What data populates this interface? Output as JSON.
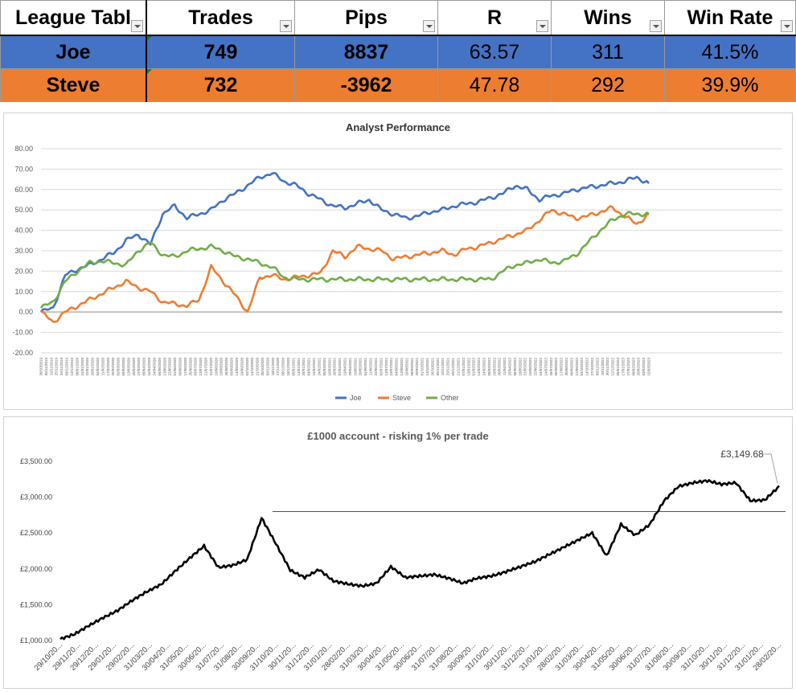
{
  "league_table": {
    "columns": [
      "League Tabl",
      "Trades",
      "Pips",
      "R",
      "Wins",
      "Win Rate"
    ],
    "rows": [
      {
        "name": "Joe",
        "trades": "749",
        "pips": "8837",
        "r": "63.57",
        "wins": "311",
        "win_rate": "41.5%",
        "color": "#4472c4"
      },
      {
        "name": "Steve",
        "trades": "732",
        "pips": "-3962",
        "r": "47.78",
        "wins": "292",
        "win_rate": "39.9%",
        "color": "#ed7d31"
      }
    ]
  },
  "chart_data": [
    {
      "type": "line",
      "title": "Analyst Performance",
      "ylim": [
        -20,
        80
      ],
      "y_ticks": [
        "-20.00",
        "-10.00",
        "0.00",
        "10.00",
        "20.00",
        "30.00",
        "40.00",
        "50.00",
        "60.00",
        "70.00",
        "80.00"
      ],
      "grid": true,
      "legend": "bottom",
      "x_tick_labels": [
        "30/10/2019",
        "05/11/2019",
        "19/11/2019",
        "25/11/2019",
        "29/11/2019",
        "09/12/2019",
        "13/12/2019",
        "08/01/2020",
        "15/01/2020",
        "22/01/2020",
        "28/01/2020",
        "04/02/2020",
        "11/02/2020",
        "17/02/2020",
        "25/02/2020",
        "02/03/2020",
        "09/03/2020",
        "13/03/2020",
        "20/03/2020",
        "27/03/2020",
        "08/04/2020",
        "16/04/2020",
        "24/04/2020",
        "05/05/2020",
        "13/05/2020",
        "22/05/2020",
        "01/06/2020",
        "09/06/2020",
        "17/06/2020",
        "25/06/2020",
        "03/07/2020",
        "13/07/2020",
        "21/07/2020",
        "31/07/2020",
        "10/08/2020",
        "18/08/2020",
        "26/08/2020",
        "03/09/2020",
        "14/09/2020",
        "24/09/2020",
        "02/10/2020",
        "13/10/2020",
        "21/10/2020",
        "30/10/2020",
        "09/11/2020",
        "18/11/2020",
        "27/11/2020",
        "08/12/2020",
        "18/12/2020",
        "05/01/2021",
        "14/01/2021",
        "25/01/2021",
        "04/02/2021",
        "15/02/2021",
        "24/02/2021",
        "05/03/2021",
        "16/03/2021",
        "26/03/2021",
        "07/04/2021",
        "19/04/2021",
        "29/04/2021",
        "10/05/2021",
        "20/05/2021",
        "01/06/2021",
        "11/06/2021",
        "22/06/2021",
        "02/07/2021",
        "13/07/2021",
        "23/07/2021",
        "04/08/2021",
        "13/08/2021",
        "26/08/2021",
        "08/09/2021",
        "20/09/2021",
        "01/10/2021",
        "13/10/2021",
        "26/10/2021",
        "05/11/2021",
        "16/11/2021",
        "29/11/2021",
        "09/12/2021",
        "21/12/2021",
        "07/01/2022",
        "19/01/2022",
        "01/02/2022",
        "14/02/2022",
        "24/02/2022",
        "08/03/2022",
        "18/03/2022",
        "30/03/2022",
        "11/04/2022",
        "25/04/2022",
        "06/05/2022",
        "18/05/2022",
        "31/05/2022",
        "10/06/2022",
        "22/06/2022",
        "04/07/2022",
        "14/07/2022",
        "26/07/2022",
        "05/08/2022",
        "17/08/2022",
        "30/08/2022",
        "09/09/2022",
        "21/09/2022",
        "03/10/2022",
        "14/10/2022",
        "27/10/2022",
        "08/11/2022",
        "18/11/2022",
        "30/11/2022",
        "12/12/2022",
        "05/01/2023",
        "17/01/2023",
        "27/01/2023",
        "08/02/2023",
        "20/02/2023",
        "03/03/2023",
        "15/03/2023"
      ],
      "x": [
        0,
        0.02,
        0.04,
        0.06,
        0.08,
        0.1,
        0.12,
        0.14,
        0.16,
        0.18,
        0.2,
        0.22,
        0.24,
        0.26,
        0.28,
        0.3,
        0.32,
        0.34,
        0.36,
        0.38,
        0.4,
        0.42,
        0.44,
        0.46,
        0.48,
        0.5,
        0.52,
        0.54,
        0.56,
        0.58,
        0.6,
        0.62,
        0.64,
        0.66,
        0.68,
        0.7,
        0.72,
        0.74,
        0.76,
        0.78,
        0.8,
        0.82,
        0.84,
        0.86,
        0.88,
        0.9,
        0.92,
        0.94,
        0.96,
        0.98,
        1
      ],
      "series": [
        {
          "name": "Joe",
          "color": "#4472c4",
          "values": [
            0,
            2,
            18,
            21,
            23,
            26,
            29,
            35,
            38,
            33,
            48,
            52,
            46,
            48,
            50,
            55,
            58,
            62,
            66,
            68,
            64,
            62,
            58,
            55,
            52,
            51,
            53,
            55,
            50,
            48,
            46,
            47,
            49,
            50,
            52,
            53,
            54,
            56,
            58,
            62,
            60,
            55,
            57,
            58,
            60,
            61,
            62,
            63,
            64,
            66,
            63
          ]
        },
        {
          "name": "Steve",
          "color": "#ed7d31",
          "values": [
            0,
            -5,
            0,
            3,
            6,
            9,
            12,
            15,
            12,
            10,
            5,
            4,
            3,
            6,
            22,
            15,
            8,
            0,
            17,
            18,
            16,
            17,
            18,
            19,
            30,
            27,
            32,
            31,
            30,
            26,
            27,
            28,
            29,
            30,
            28,
            31,
            32,
            34,
            36,
            38,
            40,
            45,
            50,
            48,
            46,
            47,
            49,
            51,
            47,
            43,
            48
          ]
        },
        {
          "name": "Other",
          "color": "#70ad47",
          "values": [
            2,
            5,
            15,
            20,
            24,
            25,
            24,
            23,
            30,
            34,
            28,
            27,
            30,
            31,
            32,
            30,
            27,
            26,
            24,
            22,
            17,
            16,
            16,
            16,
            16,
            16,
            16,
            16,
            16,
            16,
            16,
            16,
            16,
            16,
            16,
            16,
            16,
            16,
            20,
            23,
            24,
            26,
            24,
            25,
            28,
            34,
            40,
            45,
            48,
            48,
            48
          ]
        }
      ]
    },
    {
      "type": "line",
      "title": "£1000 account - risking 1% per trade",
      "ylim": [
        1000,
        3500
      ],
      "y_ticks": [
        "£1,000.00",
        "£1,500.00",
        "£2,000.00",
        "£2,500.00",
        "£3,000.00",
        "£3,500.00"
      ],
      "grid": false,
      "annotation": "£3,149.68",
      "reference_line": 2800,
      "x_tick_labels": [
        "29/10/20...",
        "29/11/20...",
        "29/12/20...",
        "29/01/20...",
        "29/02/20...",
        "31/03/20...",
        "30/04/20...",
        "31/05/20...",
        "30/06/20...",
        "31/07/20...",
        "31/08/20...",
        "30/09/20...",
        "31/10/20...",
        "30/11/20...",
        "31/12/20...",
        "31/01/20...",
        "28/02/20...",
        "31/03/20...",
        "30/04/20...",
        "31/05/20...",
        "30/06/20...",
        "31/07/20...",
        "31/08/20...",
        "30/09/20...",
        "31/10/20...",
        "30/11/20...",
        "31/12/20...",
        "31/01/20...",
        "28/02/20...",
        "31/03/20...",
        "30/04/20...",
        "31/05/20...",
        "30/06/20...",
        "31/07/20...",
        "31/08/20...",
        "30/09/20...",
        "31/10/20...",
        "30/11/20...",
        "31/12/20...",
        "31/01/20...",
        "28/02/20..."
      ],
      "series": [
        {
          "name": "",
          "color": "#000000",
          "x": [
            0,
            0.02,
            0.04,
            0.06,
            0.08,
            0.1,
            0.12,
            0.14,
            0.16,
            0.18,
            0.2,
            0.22,
            0.24,
            0.26,
            0.28,
            0.3,
            0.32,
            0.34,
            0.36,
            0.38,
            0.4,
            0.42,
            0.44,
            0.46,
            0.48,
            0.5,
            0.52,
            0.54,
            0.56,
            0.58,
            0.6,
            0.62,
            0.64,
            0.66,
            0.68,
            0.7,
            0.72,
            0.74,
            0.76,
            0.78,
            0.8,
            0.82,
            0.84,
            0.86,
            0.88,
            0.9,
            0.92,
            0.94,
            0.96,
            0.98,
            1
          ],
          "values": [
            1020,
            1090,
            1210,
            1320,
            1420,
            1560,
            1680,
            1780,
            1970,
            2150,
            2320,
            2020,
            2050,
            2130,
            2710,
            2350,
            1980,
            1880,
            1990,
            1830,
            1790,
            1760,
            1800,
            2030,
            1880,
            1900,
            1920,
            1870,
            1800,
            1870,
            1900,
            1960,
            2030,
            2100,
            2200,
            2300,
            2400,
            2500,
            2180,
            2620,
            2470,
            2620,
            2950,
            3150,
            3200,
            3230,
            3180,
            3200,
            2950,
            2960,
            3150
          ]
        }
      ]
    }
  ]
}
